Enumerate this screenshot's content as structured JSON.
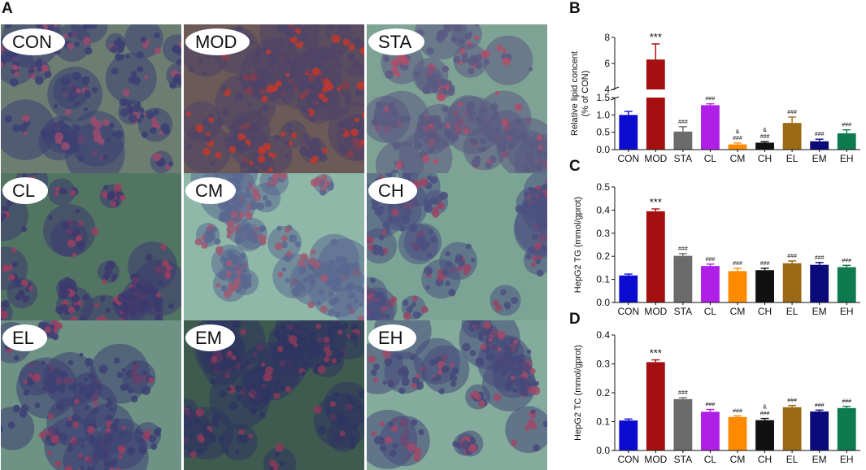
{
  "panels": {
    "A": "A",
    "B": "B",
    "C": "C",
    "D": "D"
  },
  "micrographs": [
    {
      "label": "CON",
      "bg": "#6c7d72",
      "cell": "#3c3f73",
      "stain": "#9a4b6e",
      "density": 0.5
    },
    {
      "label": "MOD",
      "bg": "#6b5a57",
      "cell": "#4e4468",
      "stain": "#c0392b",
      "density": 0.78
    },
    {
      "label": "STA",
      "bg": "#7ea394",
      "cell": "#5a5a82",
      "stain": "#b0506a",
      "density": 0.55
    },
    {
      "label": "CL",
      "bg": "#517463",
      "cell": "#3c3a6e",
      "stain": "#9a4060",
      "density": 0.35
    },
    {
      "label": "CM",
      "bg": "#8fb8a8",
      "cell": "#5a6890",
      "stain": "#a05a72",
      "density": 0.58
    },
    {
      "label": "CH",
      "bg": "#7ba495",
      "cell": "#4b5080",
      "stain": "#9a4565",
      "density": 0.55
    },
    {
      "label": "EL",
      "bg": "#6e9283",
      "cell": "#3c3f73",
      "stain": "#9a4060",
      "density": 0.35
    },
    {
      "label": "EM",
      "bg": "#3f5b4f",
      "cell": "#2e3560",
      "stain": "#8a3a58",
      "density": 0.62
    },
    {
      "label": "EH",
      "bg": "#84ab9c",
      "cell": "#46497a",
      "stain": "#a04a68",
      "density": 0.4
    }
  ],
  "chart_data": [
    {
      "type": "bar",
      "panel": "B",
      "categories": [
        "CON",
        "MOD",
        "STA",
        "CL",
        "CM",
        "CH",
        "EL",
        "EM",
        "EH"
      ],
      "values": [
        1.0,
        6.3,
        0.52,
        1.28,
        0.15,
        0.2,
        0.77,
        0.24,
        0.47
      ],
      "errors": [
        0.1,
        1.2,
        0.14,
        0.04,
        0.04,
        0.03,
        0.17,
        0.06,
        0.1
      ],
      "annotations": [
        "",
        "***",
        "###",
        "###",
        "&\n###",
        "&\n###",
        "###",
        "###",
        "###"
      ],
      "ylabel": "Relative lipid concent\n(% of CON)",
      "yaxis_break": true,
      "ylim_lower": [
        0,
        1.5
      ],
      "ylim_upper": [
        4,
        8
      ],
      "yticks_lower": [
        "0.0",
        "0.5",
        "1.0",
        "1.5"
      ],
      "yticks_upper": [
        "4",
        "6",
        "8"
      ],
      "colors": [
        "#0c0cd1",
        "#a50f0f",
        "#6b6b6b",
        "#b01fe6",
        "#ff8a00",
        "#111111",
        "#9c6a17",
        "#0a0a7a",
        "#0d7a4f"
      ]
    },
    {
      "type": "bar",
      "panel": "C",
      "categories": [
        "CON",
        "MOD",
        "STA",
        "CL",
        "CM",
        "CH",
        "EL",
        "EM",
        "EH"
      ],
      "values": [
        0.117,
        0.395,
        0.202,
        0.158,
        0.136,
        0.14,
        0.17,
        0.163,
        0.153
      ],
      "errors": [
        0.006,
        0.01,
        0.01,
        0.008,
        0.012,
        0.008,
        0.01,
        0.01,
        0.008
      ],
      "annotations": [
        "",
        "***",
        "###",
        "###",
        "###",
        "###",
        "###",
        "###",
        "###"
      ],
      "ylabel": "HepG2 TG (mmol/gprot)",
      "ylim": [
        0,
        0.5
      ],
      "yticks": [
        "0.0",
        "0.1",
        "0.2",
        "0.3",
        "0.4",
        "0.5"
      ],
      "colors": [
        "#0c0cd1",
        "#a50f0f",
        "#6b6b6b",
        "#b01fe6",
        "#ff8a00",
        "#111111",
        "#9c6a17",
        "#0a0a7a",
        "#0d7a4f"
      ]
    },
    {
      "type": "bar",
      "panel": "D",
      "categories": [
        "CON",
        "MOD",
        "STA",
        "CL",
        "CM",
        "CH",
        "EL",
        "EM",
        "EH"
      ],
      "values": [
        0.104,
        0.306,
        0.178,
        0.134,
        0.116,
        0.105,
        0.15,
        0.135,
        0.147
      ],
      "errors": [
        0.005,
        0.008,
        0.005,
        0.008,
        0.004,
        0.006,
        0.006,
        0.005,
        0.006
      ],
      "annotations": [
        "",
        "***",
        "###",
        "###",
        "###",
        "&\n###",
        "###",
        "###",
        "###"
      ],
      "ylabel": "HepG2 TC (mmol/gprot)",
      "ylim": [
        0,
        0.4
      ],
      "yticks": [
        "0.0",
        "0.1",
        "0.2",
        "0.3",
        "0.4"
      ],
      "colors": [
        "#0c0cd1",
        "#a50f0f",
        "#6b6b6b",
        "#b01fe6",
        "#ff8a00",
        "#111111",
        "#9c6a17",
        "#0a0a7a",
        "#0d7a4f"
      ]
    }
  ]
}
